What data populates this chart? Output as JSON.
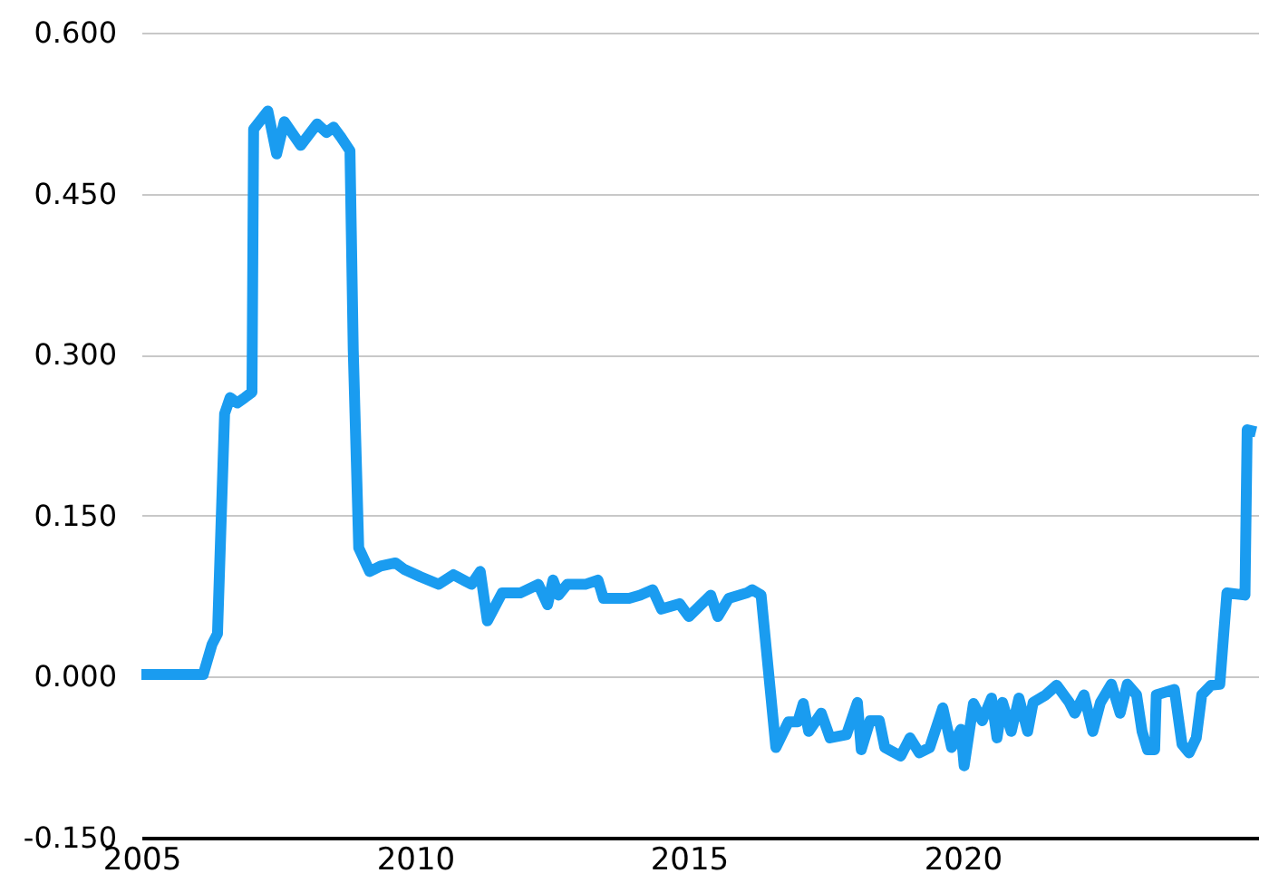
{
  "chart_data": {
    "type": "line",
    "x": [
      2005.0,
      2006.13,
      2006.29,
      2006.39,
      2006.52,
      2006.62,
      2006.75,
      2006.89,
      2007.02,
      2007.05,
      2007.31,
      2007.47,
      2007.61,
      2007.91,
      2008.21,
      2008.38,
      2008.51,
      2008.64,
      2008.81,
      2008.87,
      2008.97,
      2009.17,
      2009.37,
      2009.64,
      2009.8,
      2010.1,
      2010.43,
      2010.7,
      2011.03,
      2011.19,
      2011.32,
      2011.59,
      2011.92,
      2012.25,
      2012.42,
      2012.52,
      2012.62,
      2012.78,
      2013.11,
      2013.34,
      2013.44,
      2013.91,
      2014.11,
      2014.34,
      2014.5,
      2014.83,
      2015.0,
      2015.4,
      2015.53,
      2015.73,
      2016.06,
      2016.16,
      2016.32,
      2016.59,
      2016.82,
      2016.99,
      2017.09,
      2017.19,
      2017.42,
      2017.58,
      2017.88,
      2018.08,
      2018.15,
      2018.31,
      2018.48,
      2018.58,
      2018.87,
      2019.04,
      2019.21,
      2019.4,
      2019.64,
      2019.8,
      2019.97,
      2020.03,
      2020.2,
      2020.36,
      2020.53,
      2020.63,
      2020.73,
      2020.89,
      2021.03,
      2021.19,
      2021.29,
      2021.52,
      2021.72,
      2021.95,
      2022.05,
      2022.22,
      2022.38,
      2022.52,
      2022.72,
      2022.88,
      2023.01,
      2023.18,
      2023.28,
      2023.38,
      2023.51,
      2023.54,
      2023.87,
      2024.01,
      2024.14,
      2024.27,
      2024.37,
      2024.54,
      2024.7,
      2024.83,
      2025.16,
      2025.2,
      2025.36
    ],
    "values": [
      0.002,
      0.002,
      0.03,
      0.04,
      0.245,
      0.26,
      0.255,
      0.26,
      0.265,
      0.51,
      0.527,
      0.487,
      0.517,
      0.495,
      0.515,
      0.507,
      0.512,
      0.503,
      0.49,
      0.304,
      0.12,
      0.098,
      0.103,
      0.106,
      0.1,
      0.093,
      0.086,
      0.095,
      0.086,
      0.098,
      0.052,
      0.078,
      0.078,
      0.086,
      0.067,
      0.09,
      0.076,
      0.086,
      0.086,
      0.09,
      0.073,
      0.073,
      0.076,
      0.081,
      0.063,
      0.068,
      0.056,
      0.076,
      0.056,
      0.073,
      0.078,
      0.081,
      0.076,
      -0.066,
      -0.042,
      -0.042,
      -0.025,
      -0.051,
      -0.034,
      -0.057,
      -0.054,
      -0.024,
      -0.068,
      -0.041,
      -0.041,
      -0.066,
      -0.074,
      -0.057,
      -0.071,
      -0.066,
      -0.029,
      -0.066,
      -0.049,
      -0.083,
      -0.025,
      -0.041,
      -0.02,
      -0.057,
      -0.024,
      -0.051,
      -0.02,
      -0.051,
      -0.024,
      -0.017,
      -0.008,
      -0.024,
      -0.034,
      -0.017,
      -0.051,
      -0.024,
      -0.007,
      -0.034,
      -0.007,
      -0.017,
      -0.051,
      -0.068,
      -0.068,
      -0.017,
      -0.012,
      -0.063,
      -0.071,
      -0.057,
      -0.017,
      -0.008,
      -0.007,
      0.078,
      0.076,
      0.23,
      0.228
    ],
    "color": "#1a9cf0",
    "xlim": [
      2005,
      2025.4
    ],
    "xticks": [
      2005,
      2010,
      2015,
      2020
    ],
    "ylim": [
      -0.15,
      0.6
    ],
    "yticks": [
      {
        "value": -0.15,
        "label": "-0.150"
      },
      {
        "value": 0,
        "label": "0.000"
      },
      {
        "value": 0.15,
        "label": "0.150"
      },
      {
        "value": 0.3,
        "label": "0.300"
      },
      {
        "value": 0.45,
        "label": "0.450"
      },
      {
        "value": 0.6,
        "label": "0.600"
      }
    ],
    "grid": "y",
    "marker": "none",
    "line_style": "solid"
  }
}
